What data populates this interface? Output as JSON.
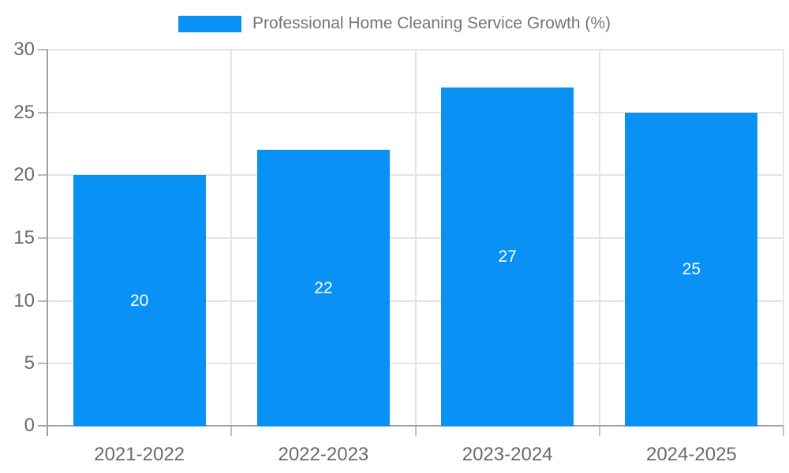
{
  "legend": {
    "label": "Professional Home Cleaning Service Growth (%)"
  },
  "chart_data": {
    "type": "bar",
    "title": "Professional Home Cleaning Service Growth (%)",
    "categories": [
      "2021-2022",
      "2022-2023",
      "2023-2024",
      "2024-2025"
    ],
    "values": [
      20,
      22,
      27,
      25
    ],
    "bar_value_labels": [
      "20",
      "22",
      "27",
      "25"
    ],
    "xlabel": "",
    "ylabel": "",
    "ylim": [
      0,
      30
    ],
    "yticks": [
      0,
      5,
      10,
      15,
      20,
      25,
      30
    ],
    "ytick_labels": [
      "0",
      "5",
      "10",
      "15",
      "20",
      "25",
      "30"
    ],
    "grid": true,
    "legend_position": "top-center",
    "colors": {
      "bar": "#0991f5",
      "grid": "#e4e4e4",
      "axis": "#9e9e9e",
      "tick": "#b8b8b8",
      "x_tick": "#c2c2c2",
      "tick_label": "#6b6b6b",
      "legend_text": "#757575",
      "bar_label": "#ffffff",
      "background": "#ffffff"
    }
  }
}
